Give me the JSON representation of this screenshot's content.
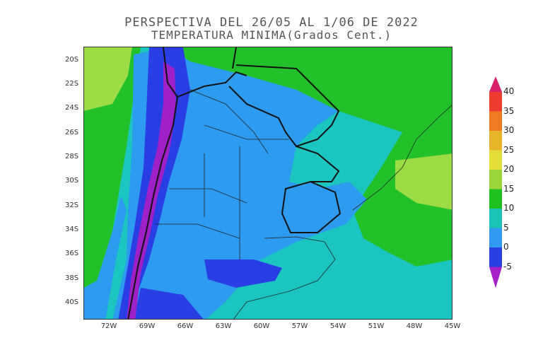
{
  "title_line1": "PERSPECTIVA DEL 26/05 AL 1/06 DE 2022",
  "title_line2": "TEMPERATURA MINIMA(Grados Cent.)",
  "lat_labels": [
    "20S",
    "22S",
    "24S",
    "26S",
    "28S",
    "30S",
    "32S",
    "34S",
    "36S",
    "38S",
    "40S"
  ],
  "lon_labels": [
    "72W",
    "69W",
    "66W",
    "63W",
    "60W",
    "57W",
    "54W",
    "51W",
    "48W",
    "45W"
  ],
  "colorbar": {
    "labels": [
      "40",
      "35",
      "30",
      "25",
      "20",
      "15",
      "10",
      "5",
      "0",
      "-5"
    ],
    "colors": [
      "#d8216b",
      "#ee3d2e",
      "#f07a22",
      "#e8b52a",
      "#e3dd3a",
      "#9bd53a",
      "#1fc11f",
      "#1bc3b5",
      "#2f9af0",
      "#2a3fe0",
      "#a620c8"
    ]
  },
  "map_colors": {
    "ocean": "#1bc6c0",
    "warm": "#22c12a",
    "mild": "#9ddc45",
    "cool": "#2d9bf0",
    "cold": "#2a3ee6",
    "freezing": "#a020c8"
  }
}
